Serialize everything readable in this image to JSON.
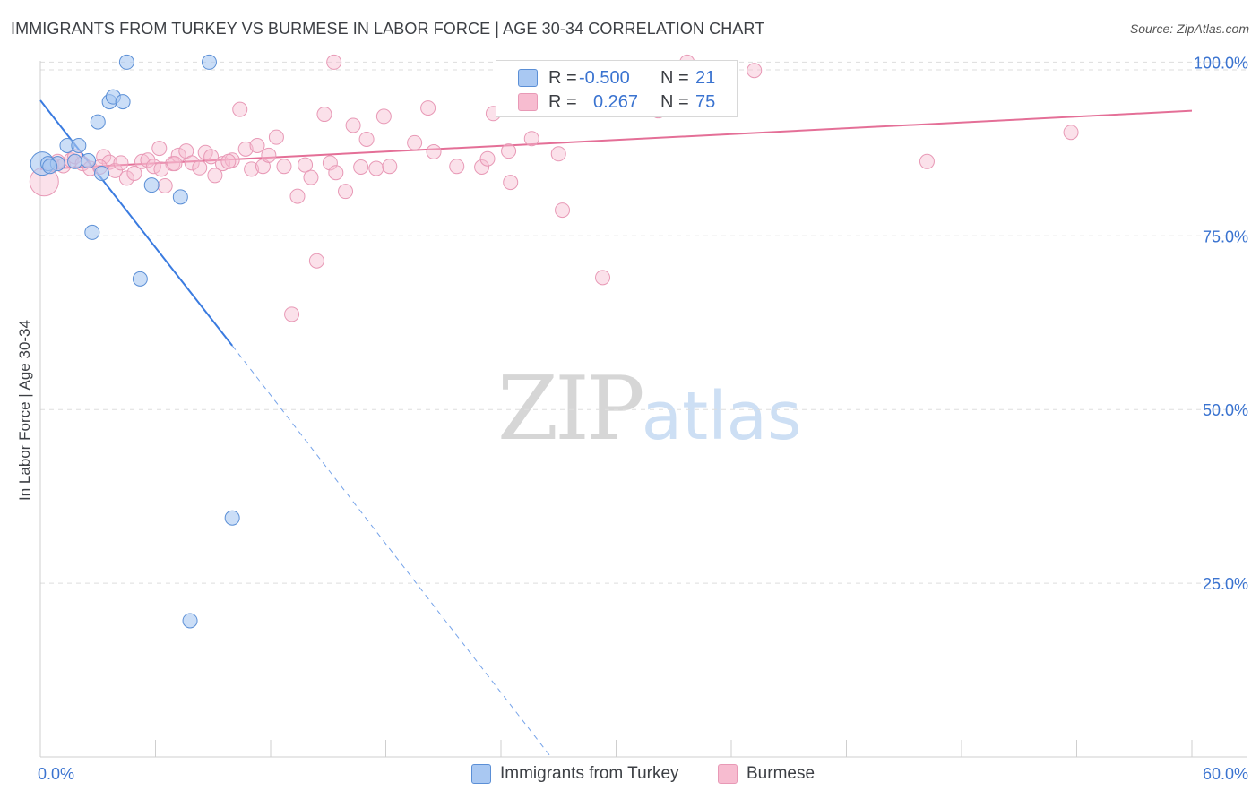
{
  "header": {
    "title": "IMMIGRANTS FROM TURKEY VS BURMESE IN LABOR FORCE | AGE 30-34 CORRELATION CHART",
    "source": "Source: ZipAtlas.com"
  },
  "watermark": {
    "zip": "ZIP",
    "atlas": "atlas"
  },
  "legend": {
    "rows": [
      {
        "r_label": "R =",
        "r_value": "-0.500",
        "n_label": "N =",
        "n_value": "21"
      },
      {
        "r_label": "R =",
        "r_value": "0.267",
        "n_label": "N =",
        "n_value": "75"
      }
    ]
  },
  "bottom_legend": {
    "items": [
      {
        "label": "Immigrants from Turkey"
      },
      {
        "label": "Burmese"
      }
    ]
  },
  "colors": {
    "turkey_fill": "#a9c8f2",
    "turkey_stroke": "#5b8fd6",
    "turkey_line": "#3a7be0",
    "burmese_fill": "#f7bcd0",
    "burmese_stroke": "#e899b6",
    "burmese_line": "#e46f97",
    "accent_text": "#3a73d0",
    "grid": "#dddddd"
  },
  "chart_data": {
    "type": "scatter",
    "title": "IMMIGRANTS FROM TURKEY VS BURMESE IN LABOR FORCE | AGE 30-34 CORRELATION CHART",
    "xlabel": "",
    "ylabel": "In Labor Force | Age 30-34",
    "xlim": [
      0,
      60
    ],
    "ylim": [
      0,
      102.5
    ],
    "x_tick_labels": [
      "0.0%",
      "60.0%"
    ],
    "y_ticks": [
      25,
      50,
      75,
      100
    ],
    "y_tick_labels": [
      "25.0%",
      "50.0%",
      "75.0%",
      "100.0%"
    ],
    "grid": true,
    "series": [
      {
        "name": "Immigrants from Turkey",
        "points": [
          [
            0.1,
            85.4
          ],
          [
            0.4,
            85.4
          ],
          [
            0.9,
            85.4
          ],
          [
            1.4,
            88.0
          ],
          [
            2.0,
            88.0
          ],
          [
            2.5,
            85.8
          ],
          [
            2.7,
            75.5
          ],
          [
            3.0,
            91.4
          ],
          [
            3.2,
            84.0
          ],
          [
            3.6,
            94.3
          ],
          [
            3.8,
            95.0
          ],
          [
            4.3,
            94.3
          ],
          [
            4.5,
            100.0
          ],
          [
            5.2,
            68.8
          ],
          [
            5.8,
            82.3
          ],
          [
            7.3,
            80.6
          ],
          [
            8.8,
            100.0
          ],
          [
            10.0,
            34.4
          ],
          [
            7.8,
            19.6
          ],
          [
            0.5,
            85.0
          ],
          [
            1.8,
            85.7
          ]
        ],
        "trend": {
          "x0": 0,
          "y0": 94.5,
          "x1": 10,
          "y1": 59.2,
          "dashed_to_x": 26.6,
          "dashed_to_y": 0
        }
      },
      {
        "name": "Burmese",
        "points": [
          [
            0.2,
            82.8
          ],
          [
            0.6,
            85.3
          ],
          [
            0.9,
            85.7
          ],
          [
            1.2,
            85.1
          ],
          [
            1.6,
            85.9
          ],
          [
            1.8,
            86.4
          ],
          [
            2.2,
            85.4
          ],
          [
            2.6,
            84.7
          ],
          [
            3.3,
            86.4
          ],
          [
            3.6,
            85.6
          ],
          [
            3.9,
            84.4
          ],
          [
            4.2,
            85.5
          ],
          [
            4.5,
            83.3
          ],
          [
            4.9,
            84.0
          ],
          [
            5.3,
            85.7
          ],
          [
            5.6,
            85.9
          ],
          [
            5.9,
            85.0
          ],
          [
            6.2,
            87.6
          ],
          [
            6.5,
            82.2
          ],
          [
            6.9,
            85.4
          ],
          [
            7.2,
            86.6
          ],
          [
            7.6,
            87.2
          ],
          [
            7.9,
            85.5
          ],
          [
            8.3,
            84.8
          ],
          [
            8.6,
            87.0
          ],
          [
            8.9,
            86.4
          ],
          [
            9.1,
            83.7
          ],
          [
            9.5,
            85.4
          ],
          [
            10.0,
            85.9
          ],
          [
            10.4,
            93.2
          ],
          [
            10.7,
            87.5
          ],
          [
            11.0,
            84.6
          ],
          [
            11.3,
            88.0
          ],
          [
            11.6,
            85.0
          ],
          [
            11.9,
            86.6
          ],
          [
            12.3,
            89.2
          ],
          [
            12.7,
            85.0
          ],
          [
            13.1,
            63.7
          ],
          [
            13.4,
            80.7
          ],
          [
            13.8,
            85.2
          ],
          [
            14.1,
            83.4
          ],
          [
            14.4,
            71.4
          ],
          [
            14.8,
            92.5
          ],
          [
            15.1,
            85.5
          ],
          [
            15.4,
            84.1
          ],
          [
            15.9,
            81.4
          ],
          [
            16.3,
            90.9
          ],
          [
            16.7,
            84.9
          ],
          [
            17.0,
            88.9
          ],
          [
            17.5,
            84.7
          ],
          [
            17.9,
            92.2
          ],
          [
            19.5,
            88.4
          ],
          [
            20.2,
            93.4
          ],
          [
            20.5,
            87.1
          ],
          [
            21.7,
            85.0
          ],
          [
            23.0,
            84.9
          ],
          [
            23.3,
            86.1
          ],
          [
            23.6,
            92.6
          ],
          [
            24.4,
            87.2
          ],
          [
            24.5,
            82.7
          ],
          [
            25.6,
            89.0
          ],
          [
            27.0,
            86.8
          ],
          [
            27.2,
            78.7
          ],
          [
            29.3,
            69.0
          ],
          [
            32.2,
            93.0
          ],
          [
            33.7,
            100.0
          ],
          [
            37.2,
            98.8
          ],
          [
            46.2,
            85.7
          ],
          [
            53.7,
            89.9
          ],
          [
            15.3,
            100.0
          ],
          [
            9.8,
            85.7
          ],
          [
            6.3,
            84.6
          ],
          [
            18.2,
            85.0
          ],
          [
            3.1,
            84.9
          ],
          [
            7.0,
            85.4
          ]
        ],
        "trend": {
          "x0": 0,
          "y0": 84.6,
          "x1": 60,
          "y1": 93.0
        }
      }
    ]
  }
}
